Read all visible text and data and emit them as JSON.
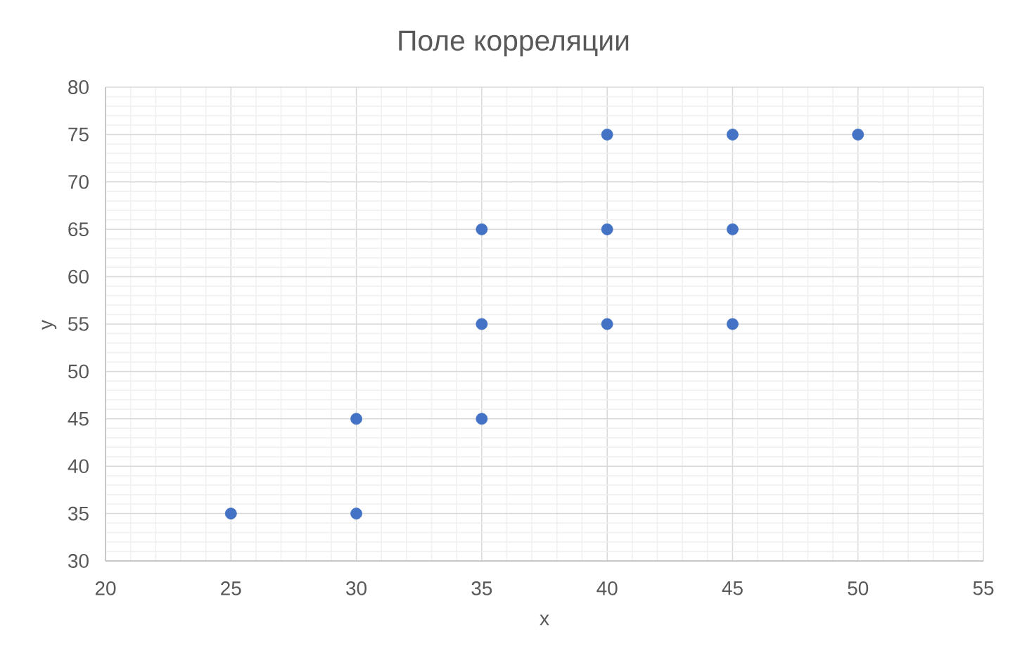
{
  "chart_data": {
    "type": "scatter",
    "title": "Поле корреляции",
    "xlabel": "x",
    "ylabel": "y",
    "x": [
      25,
      30,
      30,
      35,
      35,
      35,
      40,
      40,
      40,
      45,
      45,
      45,
      50
    ],
    "values": [
      35,
      35,
      45,
      45,
      55,
      65,
      55,
      65,
      75,
      55,
      65,
      75,
      75
    ],
    "color": "#4472c4",
    "marker": "circle",
    "grid": true,
    "xlim": [
      20,
      55
    ],
    "ylim": [
      30,
      80
    ],
    "xticks": [
      20,
      25,
      30,
      35,
      40,
      45,
      50,
      55
    ],
    "yticks": [
      30,
      35,
      40,
      45,
      50,
      55,
      60,
      65,
      70,
      75,
      80
    ]
  }
}
